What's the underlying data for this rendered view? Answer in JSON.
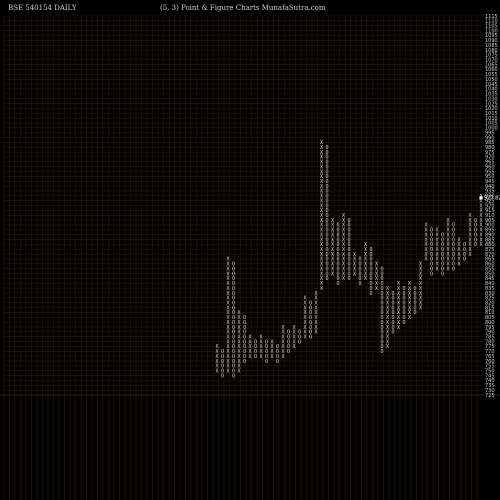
{
  "header": {
    "symbol": "BSE 540154  DAILY",
    "params": "(5,  3) Point & Figure    Charts MunafaSutra.com"
  },
  "colors": {
    "background": "#000000",
    "grid": "#2a1a0c",
    "marks": "#d8d8d8",
    "text": "#cfcfcf"
  },
  "chart_data": {
    "type": "point-and-figure",
    "title": "(5,  3) Point & Figure",
    "box_size": 5,
    "reversal": 3,
    "ylim": [
      725,
      1115
    ],
    "y_ticks": [
      1115,
      1110,
      1105,
      1100,
      1095,
      1090,
      1085,
      1080,
      1075,
      1070,
      1065,
      1060,
      1055,
      1050,
      1045,
      1040,
      1035,
      1030,
      1025,
      1020,
      1015,
      1010,
      1005,
      1000,
      995,
      990,
      985,
      980,
      975,
      970,
      965,
      960,
      955,
      950,
      945,
      940,
      935,
      930,
      925,
      920,
      915,
      910,
      905,
      900,
      895,
      890,
      885,
      880,
      875,
      870,
      865,
      860,
      855,
      850,
      845,
      840,
      835,
      830,
      825,
      820,
      815,
      810,
      805,
      800,
      795,
      790,
      785,
      780,
      775,
      770,
      765,
      760,
      755,
      750,
      745,
      740,
      735,
      730,
      725
    ],
    "last_price": "927.82",
    "columns": [
      {
        "type": "X",
        "low": 750,
        "high": 775
      },
      {
        "type": "O",
        "low": 745,
        "high": 770
      },
      {
        "type": "X",
        "low": 750,
        "high": 865
      },
      {
        "type": "O",
        "low": 745,
        "high": 860
      },
      {
        "type": "X",
        "low": 750,
        "high": 810
      },
      {
        "type": "O",
        "low": 760,
        "high": 805
      },
      {
        "type": "X",
        "low": 765,
        "high": 785
      },
      {
        "type": "O",
        "low": 765,
        "high": 780
      },
      {
        "type": "X",
        "low": 765,
        "high": 785
      },
      {
        "type": "O",
        "low": 760,
        "high": 780
      },
      {
        "type": "X",
        "low": 765,
        "high": 780
      },
      {
        "type": "O",
        "low": 760,
        "high": 775
      },
      {
        "type": "X",
        "low": 765,
        "high": 795
      },
      {
        "type": "O",
        "low": 770,
        "high": 790
      },
      {
        "type": "X",
        "low": 775,
        "high": 795
      },
      {
        "type": "O",
        "low": 780,
        "high": 790
      },
      {
        "type": "X",
        "low": 785,
        "high": 825
      },
      {
        "type": "O",
        "low": 785,
        "high": 820
      },
      {
        "type": "X",
        "low": 790,
        "high": 830
      },
      {
        "type": "X",
        "low": 835,
        "high": 985
      },
      {
        "type": "O",
        "low": 845,
        "high": 980
      },
      {
        "type": "X",
        "low": 850,
        "high": 905
      },
      {
        "type": "O",
        "low": 840,
        "high": 900
      },
      {
        "type": "X",
        "low": 845,
        "high": 910
      },
      {
        "type": "O",
        "low": 845,
        "high": 905
      },
      {
        "type": "X",
        "low": 850,
        "high": 870
      },
      {
        "type": "O",
        "low": 840,
        "high": 865
      },
      {
        "type": "X",
        "low": 845,
        "high": 880
      },
      {
        "type": "O",
        "low": 830,
        "high": 875
      },
      {
        "type": "X",
        "low": 835,
        "high": 860
      },
      {
        "type": "O",
        "low": 770,
        "high": 855
      },
      {
        "type": "X",
        "low": 775,
        "high": 835
      },
      {
        "type": "O",
        "low": 790,
        "high": 830
      },
      {
        "type": "X",
        "low": 795,
        "high": 840
      },
      {
        "type": "O",
        "low": 800,
        "high": 835
      },
      {
        "type": "X",
        "low": 805,
        "high": 840
      },
      {
        "type": "O",
        "low": 810,
        "high": 835
      },
      {
        "type": "X",
        "low": 815,
        "high": 860
      },
      {
        "type": "X",
        "low": 865,
        "high": 900
      },
      {
        "type": "O",
        "low": 850,
        "high": 895
      },
      {
        "type": "X",
        "low": 855,
        "high": 895
      },
      {
        "type": "O",
        "low": 850,
        "high": 890
      },
      {
        "type": "X",
        "low": 855,
        "high": 905
      },
      {
        "type": "O",
        "low": 855,
        "high": 900
      },
      {
        "type": "X",
        "low": 860,
        "high": 885
      },
      {
        "type": "O",
        "low": 865,
        "high": 880
      },
      {
        "type": "X",
        "low": 870,
        "high": 910
      },
      {
        "type": "O",
        "low": 880,
        "high": 905
      },
      {
        "type": "X",
        "low": 880,
        "high": 930
      }
    ]
  }
}
